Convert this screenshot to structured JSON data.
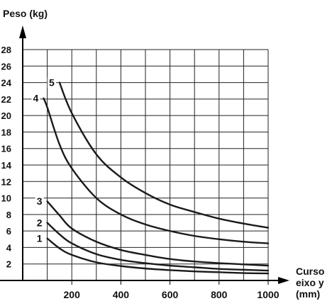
{
  "chart_data": {
    "type": "line",
    "ylabel": "Peso (kg)",
    "xlabel_lines": [
      "Curso",
      "eixo y",
      "(mm)"
    ],
    "xlim": [
      0,
      1000
    ],
    "ylim": [
      0,
      28
    ],
    "x_ticks": [
      200,
      400,
      600,
      800,
      1000
    ],
    "y_ticks": [
      2,
      4,
      6,
      8,
      10,
      12,
      14,
      16,
      18,
      20,
      22,
      24,
      26,
      28
    ],
    "grid": true,
    "colors": {
      "line": "#1a1a1a",
      "grid": "#222222"
    },
    "series": [
      {
        "name": "1",
        "x": [
          100,
          150,
          200,
          300,
          400,
          500,
          600,
          700,
          800,
          900,
          1000
        ],
        "y": [
          5.1,
          3.9,
          3.1,
          2.2,
          1.75,
          1.45,
          1.25,
          1.1,
          1.0,
          0.9,
          0.85
        ]
      },
      {
        "name": "2",
        "x": [
          100,
          150,
          200,
          300,
          400,
          500,
          600,
          700,
          800,
          900,
          1000
        ],
        "y": [
          7.0,
          5.6,
          4.5,
          3.2,
          2.5,
          2.1,
          1.8,
          1.6,
          1.4,
          1.3,
          1.2
        ]
      },
      {
        "name": "3",
        "x": [
          100,
          150,
          200,
          300,
          400,
          500,
          600,
          700,
          800,
          900,
          1000
        ],
        "y": [
          9.6,
          7.9,
          6.3,
          4.7,
          3.7,
          3.1,
          2.6,
          2.3,
          2.1,
          1.95,
          1.8
        ]
      },
      {
        "name": "4",
        "x": [
          85,
          100,
          150,
          200,
          300,
          400,
          500,
          600,
          700,
          800,
          900,
          1000
        ],
        "y": [
          22.1,
          21.0,
          16.5,
          13.6,
          10.0,
          8.0,
          6.8,
          6.0,
          5.4,
          5.0,
          4.7,
          4.5
        ]
      },
      {
        "name": "5",
        "x": [
          150,
          200,
          300,
          400,
          500,
          600,
          700,
          800,
          900,
          1000
        ],
        "y": [
          24.0,
          20.3,
          15.3,
          12.5,
          10.6,
          9.2,
          8.3,
          7.5,
          6.9,
          6.4
        ]
      }
    ]
  }
}
